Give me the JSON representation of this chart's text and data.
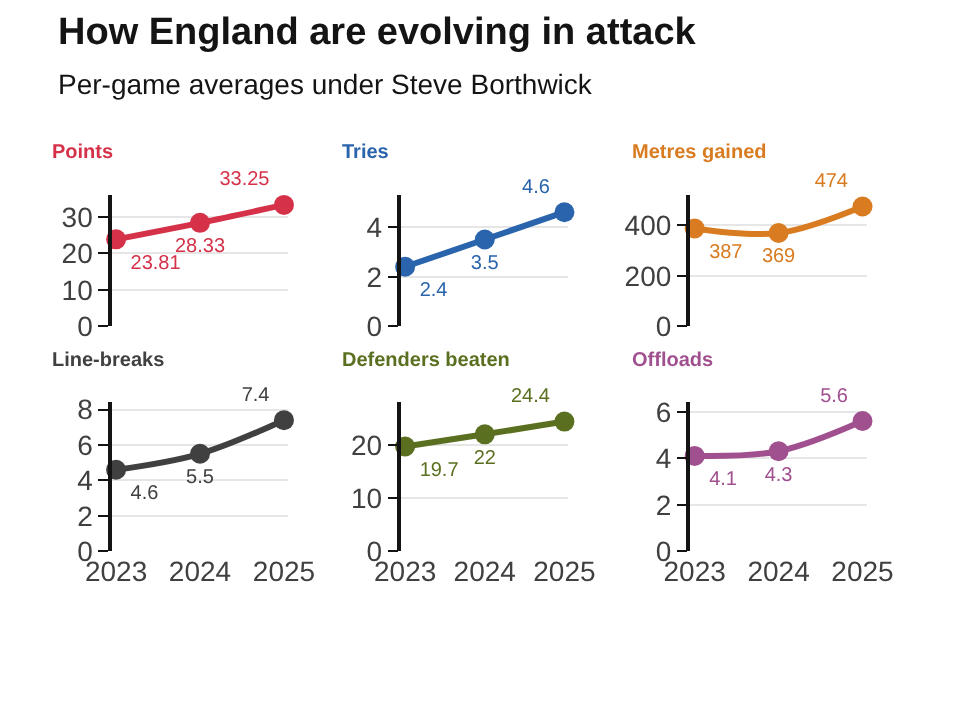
{
  "chart_data": [
    {
      "type": "other",
      "title": "How England are evolving in attack",
      "subtitle": "Per-game averages under Steve Borthwick"
    },
    {
      "type": "line",
      "title": "Points",
      "categories": [
        "2023",
        "2024",
        "2025"
      ],
      "series": [
        {
          "color": "#d5324a",
          "values": [
            23.81,
            28.33,
            33.25
          ]
        }
      ],
      "ylim": [
        0,
        36
      ],
      "yticks": [
        0,
        10,
        20,
        30
      ],
      "grid": "y",
      "marker": "circle",
      "data_labels": true,
      "tick_labels": "y"
    },
    {
      "type": "line",
      "title": "Tries",
      "categories": [
        "2023",
        "2024",
        "2025"
      ],
      "series": [
        {
          "color": "#2a64ac",
          "values": [
            2.4,
            3.5,
            4.6
          ]
        }
      ],
      "ylim": [
        0,
        5.3
      ],
      "yticks": [
        0,
        2,
        4
      ],
      "grid": "y",
      "marker": "circle",
      "data_labels": true,
      "tick_labels": "y"
    },
    {
      "type": "line",
      "title": "Metres gained",
      "categories": [
        "2023",
        "2024",
        "2025"
      ],
      "series": [
        {
          "color": "#d97b20",
          "values": [
            387,
            369,
            474
          ]
        }
      ],
      "ylim": [
        0,
        520
      ],
      "yticks": [
        0,
        200,
        400
      ],
      "grid": "y",
      "marker": "circle",
      "data_labels": true,
      "tick_labels": "y"
    },
    {
      "type": "line",
      "title": "Line-breaks",
      "categories": [
        "2023",
        "2024",
        "2025"
      ],
      "series": [
        {
          "color": "#404040",
          "values": [
            4.6,
            5.5,
            7.4
          ]
        }
      ],
      "ylim": [
        0,
        8.4
      ],
      "yticks": [
        0,
        2,
        4,
        6,
        8
      ],
      "grid": "y",
      "marker": "circle",
      "data_labels": true
    },
    {
      "type": "line",
      "title": "Defenders beaten",
      "categories": [
        "2023",
        "2024",
        "2025"
      ],
      "series": [
        {
          "color": "#5a7020",
          "values": [
            19.7,
            22,
            24.4
          ]
        }
      ],
      "ylim": [
        0,
        28
      ],
      "yticks": [
        0,
        10,
        20
      ],
      "grid": "y",
      "marker": "circle",
      "data_labels": true
    },
    {
      "type": "line",
      "title": "Offloads",
      "categories": [
        "2023",
        "2024",
        "2025"
      ],
      "series": [
        {
          "color": "#a0508f",
          "values": [
            4.1,
            4.3,
            5.6
          ]
        }
      ],
      "ylim": [
        0,
        6.4
      ],
      "yticks": [
        0,
        2,
        4,
        6
      ],
      "grid": "y",
      "marker": "circle",
      "data_labels": true
    }
  ]
}
